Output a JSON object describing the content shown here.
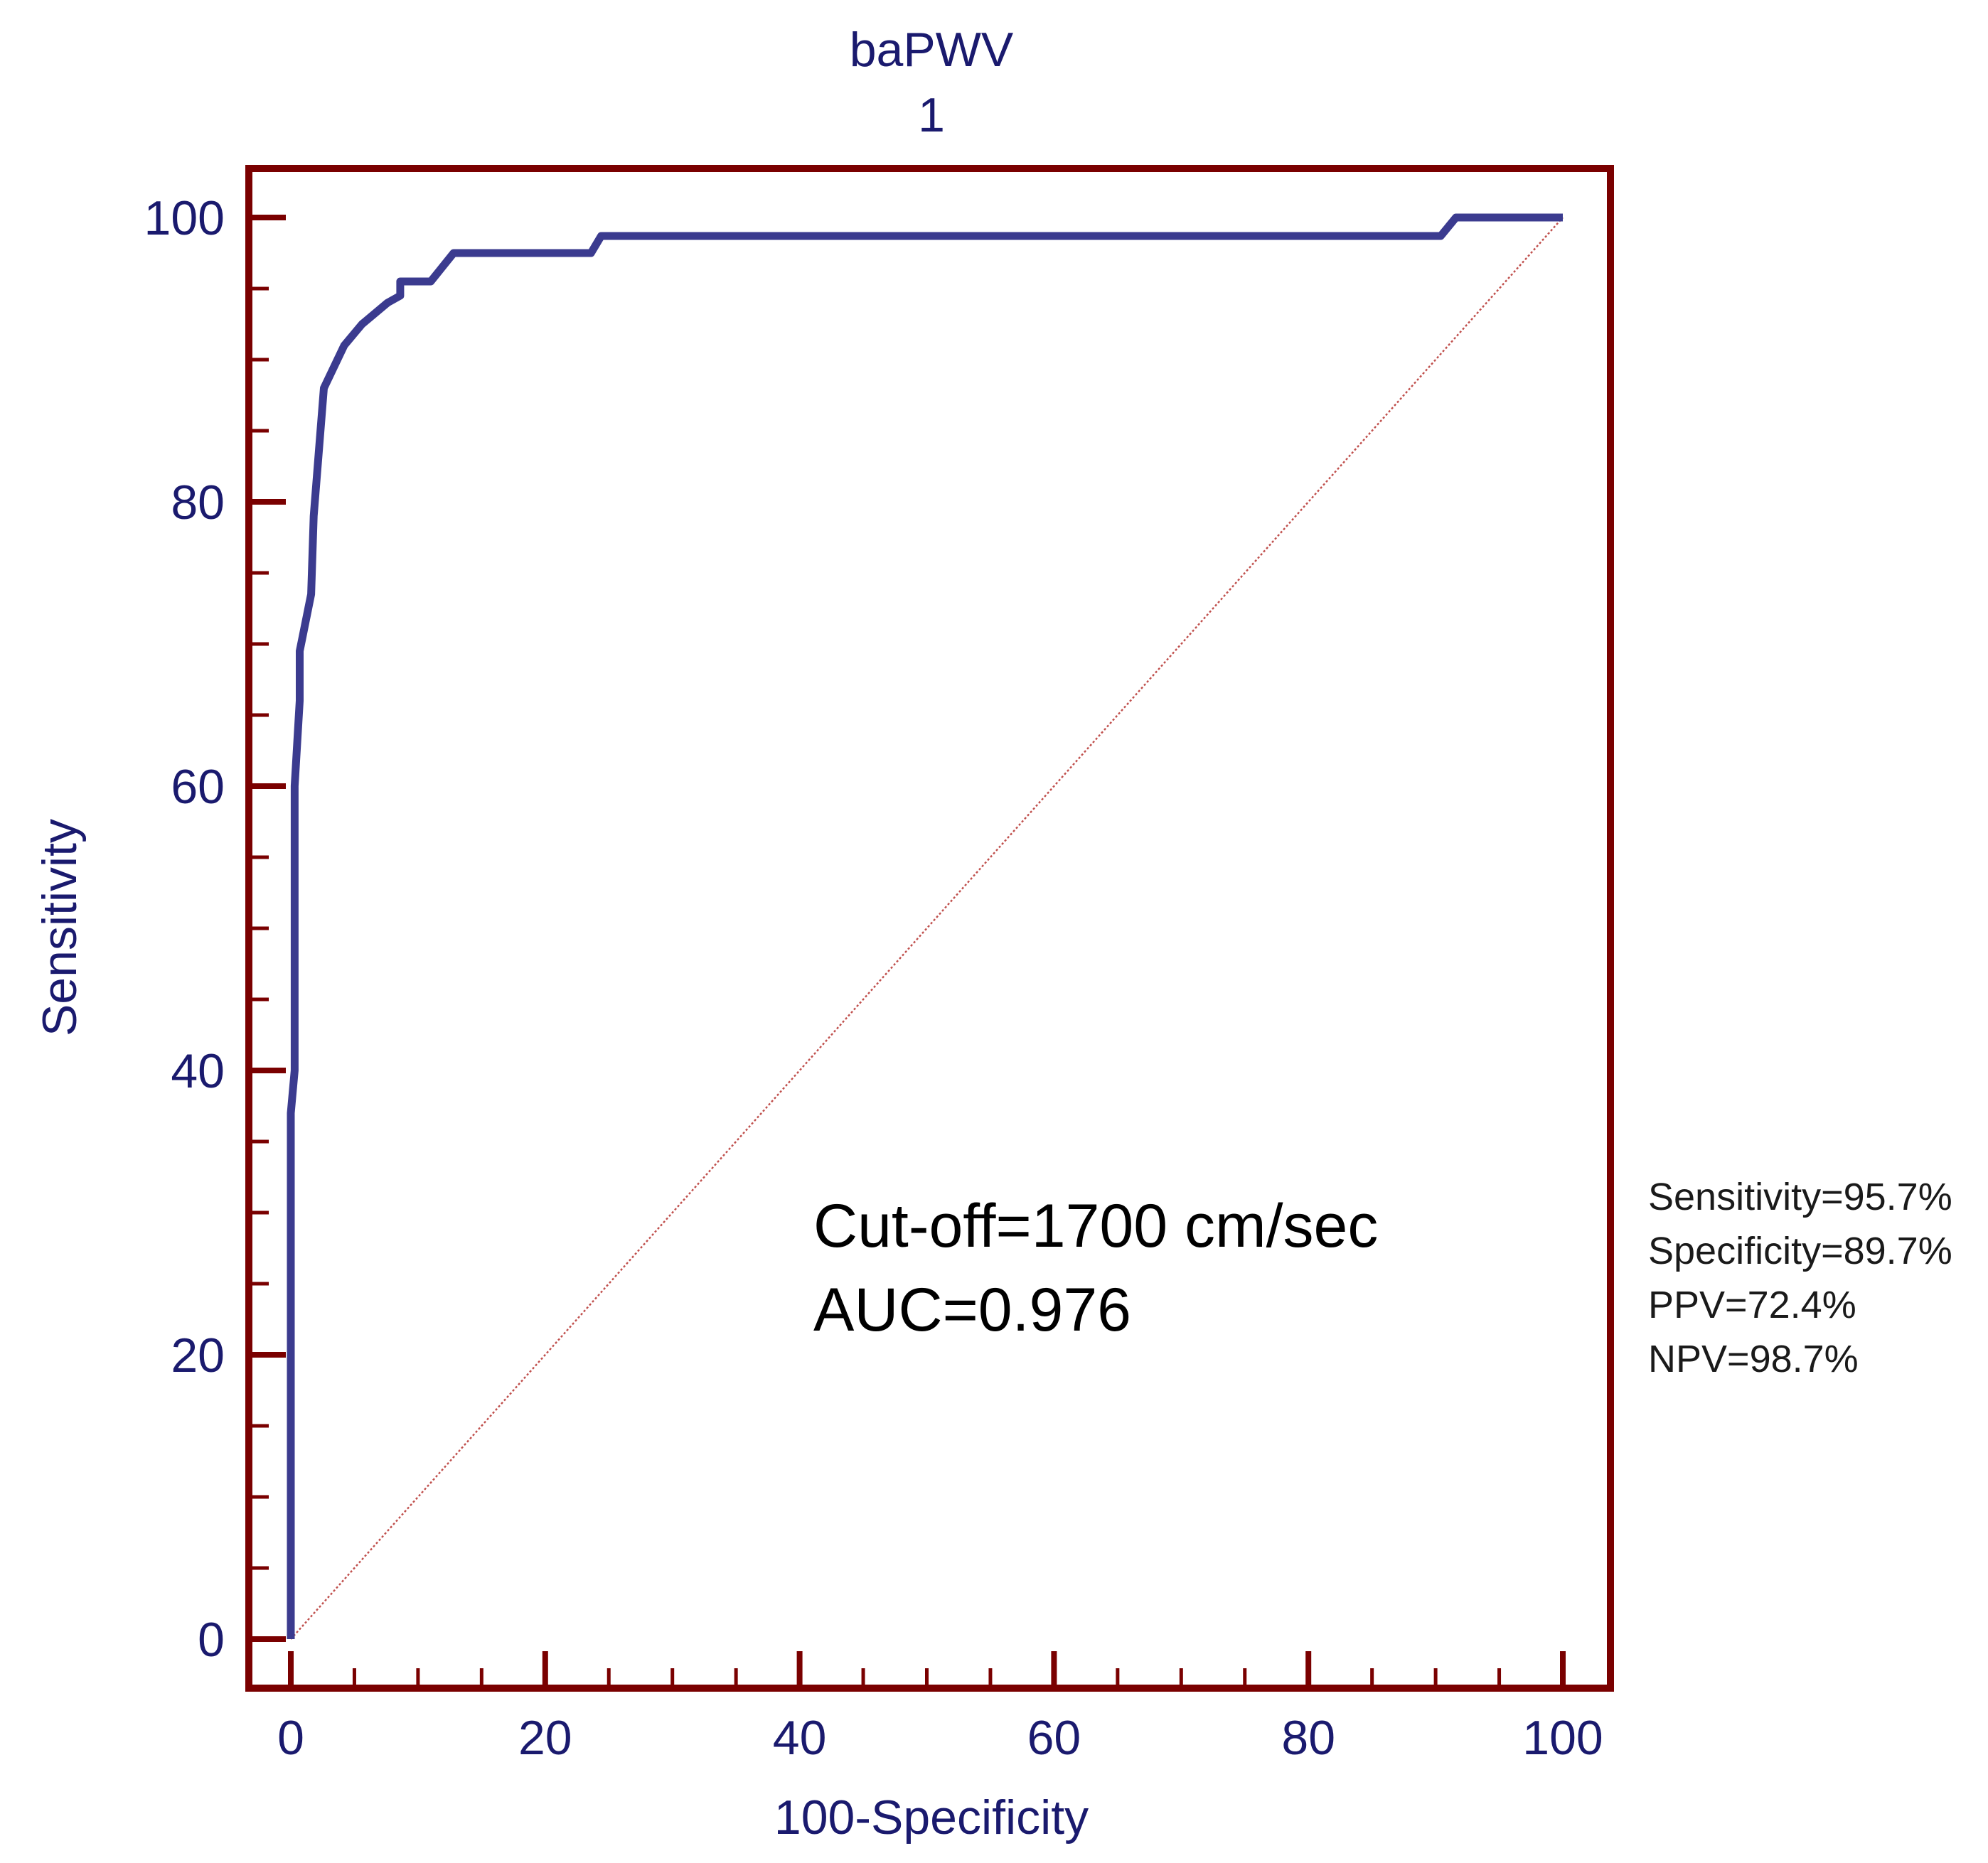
{
  "colors": {
    "frame": "#7a0000",
    "curve": "#3b3b8f",
    "diagonal": "#c0504d",
    "axis_text": "#1a1a6e",
    "annotation_text": "#000000",
    "stats_text": "#1a1a1a"
  },
  "chart_data": {
    "type": "line",
    "title": "baPWV",
    "subtitle": "1",
    "xlabel": "100-Specificity",
    "ylabel": "Sensitivity",
    "xlim": [
      0,
      100
    ],
    "ylim": [
      0,
      100
    ],
    "x_ticks": [
      "0",
      "20",
      "40",
      "60",
      "80",
      "100"
    ],
    "y_ticks": [
      "0",
      "20",
      "40",
      "60",
      "80",
      "100"
    ],
    "grid": false,
    "series": [
      {
        "role": "roc-curve",
        "points": [
          [
            0,
            0
          ],
          [
            0,
            37
          ],
          [
            0.3,
            40
          ],
          [
            0.3,
            60
          ],
          [
            0.7,
            66
          ],
          [
            0.7,
            69.5
          ],
          [
            1.6,
            73.5
          ],
          [
            1.8,
            79
          ],
          [
            2.6,
            88
          ],
          [
            4.2,
            91
          ],
          [
            5.6,
            92.5
          ],
          [
            7.6,
            94
          ],
          [
            8.6,
            94.5
          ],
          [
            8.6,
            95.5
          ],
          [
            11,
            95.5
          ],
          [
            12.8,
            97.5
          ],
          [
            23.6,
            97.5
          ],
          [
            24.4,
            98.7
          ],
          [
            90.4,
            98.7
          ],
          [
            91.6,
            100
          ],
          [
            100,
            100
          ]
        ]
      },
      {
        "role": "reference-diagonal",
        "points": [
          [
            0,
            0
          ],
          [
            100,
            100
          ]
        ]
      }
    ],
    "annotations": {
      "cutoff": "Cut-off=1700 cm/sec",
      "auc": "AUC=0.976"
    },
    "stats": [
      "Sensitivity=95.7%",
      "Specificity=89.7%",
      "PPV=72.4%",
      "NPV=98.7%"
    ]
  }
}
